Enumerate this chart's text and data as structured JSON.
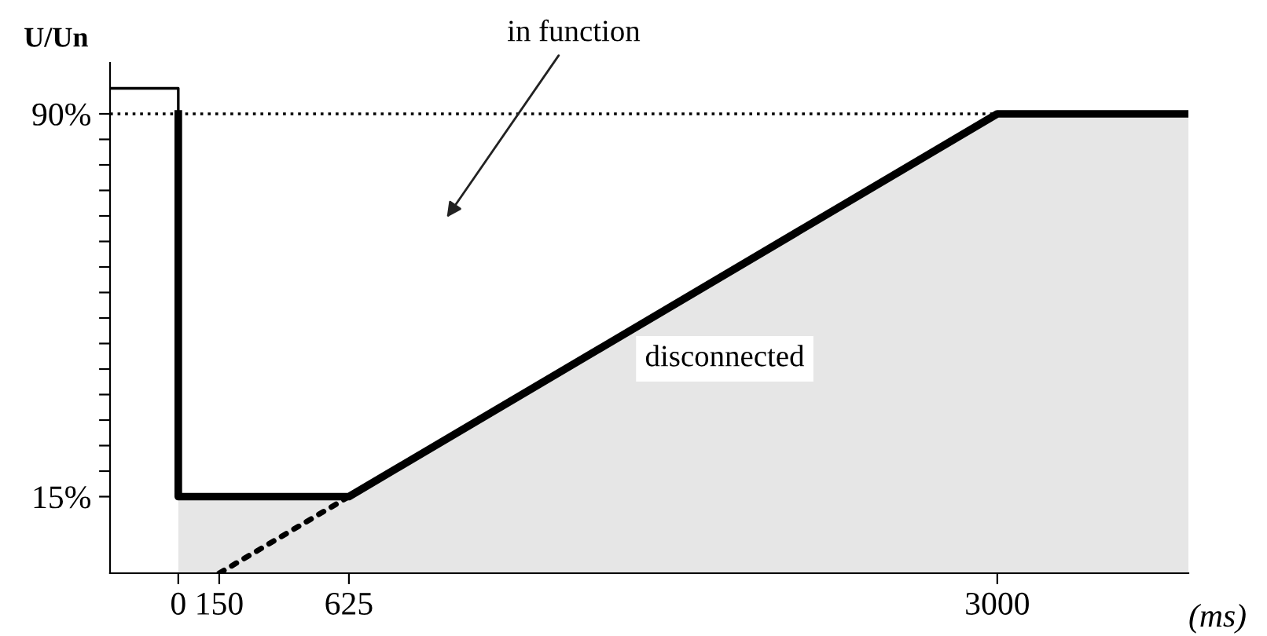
{
  "chart_data": {
    "type": "line",
    "xlabel": "(ms)",
    "ylabel": "U/Un",
    "xlim": [
      -250,
      3700
    ],
    "ylim": [
      0,
      100
    ],
    "xticks": [
      0,
      150,
      625,
      3000
    ],
    "yticks": [
      {
        "value": 15,
        "label": "15%"
      },
      {
        "value": 20,
        "label": null
      },
      {
        "value": 25,
        "label": null
      },
      {
        "value": 30,
        "label": null
      },
      {
        "value": 35,
        "label": null
      },
      {
        "value": 40,
        "label": null
      },
      {
        "value": 45,
        "label": null
      },
      {
        "value": 50,
        "label": null
      },
      {
        "value": 55,
        "label": null
      },
      {
        "value": 60,
        "label": null
      },
      {
        "value": 65,
        "label": null
      },
      {
        "value": 70,
        "label": null
      },
      {
        "value": 75,
        "label": null
      },
      {
        "value": 80,
        "label": null
      },
      {
        "value": 85,
        "label": null
      },
      {
        "value": 90,
        "label": "90%"
      }
    ],
    "series": [
      {
        "type": "area",
        "color": "#e6e6e6",
        "x": [
          0,
          0,
          625,
          3000,
          3700
        ],
        "values": [
          90,
          15,
          15,
          90,
          90
        ]
      },
      {
        "type": "line",
        "color": "#000000",
        "x": [
          -250,
          0,
          0
        ],
        "values": [
          95,
          95,
          90
        ]
      },
      {
        "type": "line",
        "color": "#000000",
        "line_style": "dotted",
        "x": [
          150,
          625
        ],
        "values": [
          0,
          15
        ]
      }
    ],
    "ref_lines": [
      {
        "axis": "y",
        "value": 90,
        "line_style": "dotted",
        "color": "#000000"
      }
    ],
    "annotations": [
      "in function",
      "disconnected"
    ],
    "grid": false,
    "legend": false
  }
}
